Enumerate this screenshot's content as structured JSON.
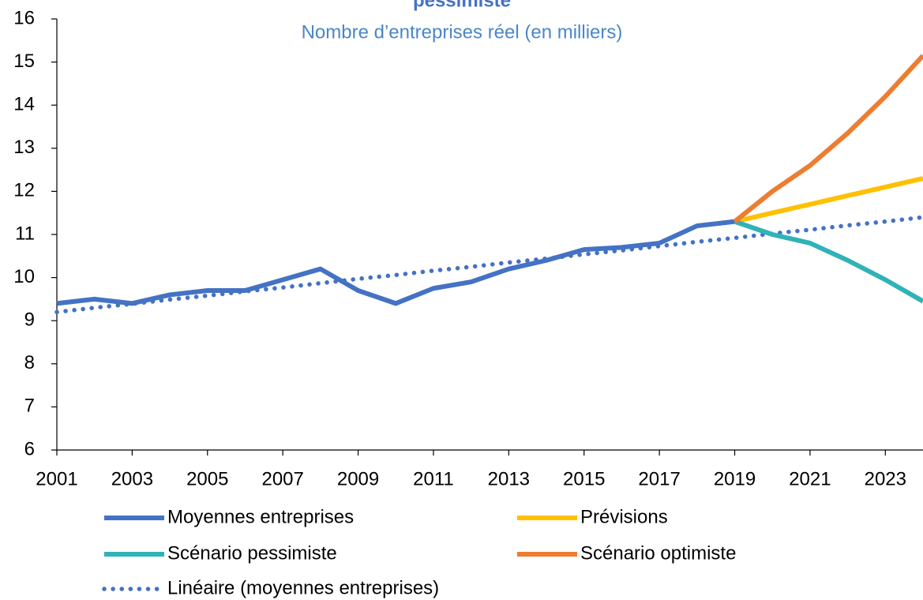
{
  "chart_data": {
    "type": "line",
    "title": "pessimiste",
    "subtitle": "Nombre d’entreprises réel (en milliers)",
    "x": [
      2001,
      2002,
      2003,
      2004,
      2005,
      2006,
      2007,
      2008,
      2009,
      2010,
      2011,
      2012,
      2013,
      2014,
      2015,
      2016,
      2017,
      2018,
      2019,
      2020,
      2021,
      2022,
      2023,
      2024
    ],
    "series": [
      {
        "name": "Moyennes entreprises",
        "color": "#4472c4",
        "style": "solid",
        "values": [
          9.4,
          9.5,
          9.4,
          9.6,
          9.7,
          9.7,
          9.95,
          10.2,
          9.7,
          9.4,
          9.75,
          9.9,
          10.2,
          10.4,
          10.65,
          10.7,
          10.8,
          11.2,
          11.3,
          null,
          null,
          null,
          null,
          null
        ]
      },
      {
        "name": "Prévisions",
        "color": "#ffc000",
        "style": "solid",
        "values": [
          null,
          null,
          null,
          null,
          null,
          null,
          null,
          null,
          null,
          null,
          null,
          null,
          null,
          null,
          null,
          null,
          null,
          null,
          11.3,
          11.5,
          11.7,
          11.9,
          12.1,
          12.3
        ]
      },
      {
        "name": "Scénario pessimiste",
        "color": "#2fb3b7",
        "style": "solid",
        "values": [
          null,
          null,
          null,
          null,
          null,
          null,
          null,
          null,
          null,
          null,
          null,
          null,
          null,
          null,
          null,
          null,
          null,
          null,
          11.3,
          11.0,
          10.8,
          10.4,
          9.95,
          9.45
        ]
      },
      {
        "name": "Scénario optimiste",
        "color": "#ed7d31",
        "style": "solid",
        "values": [
          null,
          null,
          null,
          null,
          null,
          null,
          null,
          null,
          null,
          null,
          null,
          null,
          null,
          null,
          null,
          null,
          null,
          null,
          11.3,
          12.0,
          12.6,
          13.35,
          14.2,
          15.15
        ]
      },
      {
        "name": "Linéaire (moyennes entreprises)",
        "color": "#4472c4",
        "style": "dotted",
        "values": [
          9.2,
          9.3,
          9.39,
          9.49,
          9.58,
          9.68,
          9.77,
          9.87,
          9.97,
          10.06,
          10.16,
          10.25,
          10.35,
          10.44,
          10.54,
          10.63,
          10.73,
          10.83,
          10.92,
          11.02,
          11.11,
          11.21,
          11.3,
          11.4
        ]
      }
    ],
    "xlim": [
      2001,
      2024
    ],
    "xticks": [
      2001,
      2003,
      2005,
      2007,
      2009,
      2011,
      2013,
      2015,
      2017,
      2019,
      2021,
      2023
    ],
    "ylim": [
      6,
      16
    ],
    "yticks": [
      6,
      7,
      8,
      9,
      10,
      11,
      12,
      13,
      14,
      15,
      16
    ]
  }
}
